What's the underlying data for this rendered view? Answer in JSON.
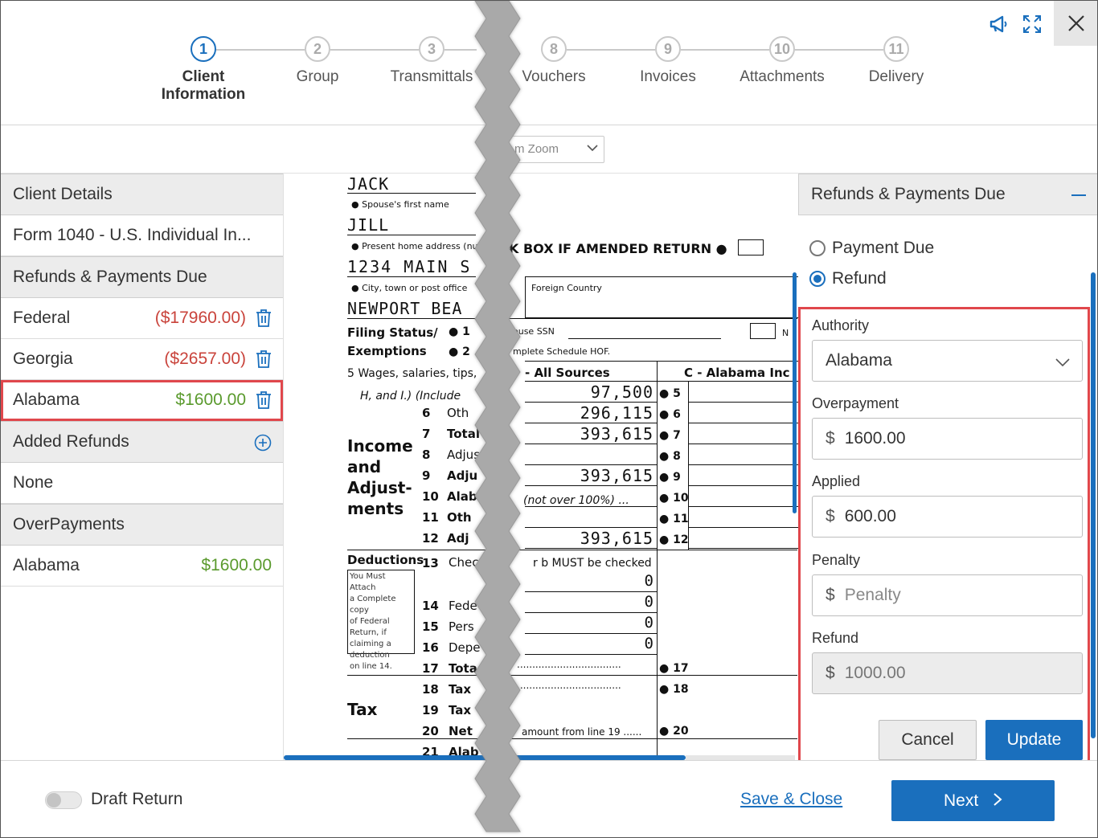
{
  "stepper": {
    "steps": [
      {
        "num": "1",
        "label": "Client\nInformation",
        "active": true
      },
      {
        "num": "2",
        "label": "Group"
      },
      {
        "num": "3",
        "label": "Transmittals"
      },
      {
        "num": "8",
        "label": "Vouchers"
      },
      {
        "num": "9",
        "label": "Invoices"
      },
      {
        "num": "10",
        "label": "Attachments"
      },
      {
        "num": "11",
        "label": "Delivery"
      }
    ]
  },
  "header_icons": [
    "megaphone-icon",
    "expand-icon",
    "close-icon"
  ],
  "toolbar": {
    "zoom_value": "m Zoom"
  },
  "left_panel": {
    "client_details_header": "Client Details",
    "form_name": "Form 1040 - U.S. Individual In...",
    "refunds_header": "Refunds & Payments Due",
    "refunds": [
      {
        "name": "Federal",
        "amount": "($17960.00)",
        "status": "red"
      },
      {
        "name": "Georgia",
        "amount": "($2657.00)",
        "status": "red"
      },
      {
        "name": "Alabama",
        "amount": "$1600.00",
        "status": "green"
      }
    ],
    "added_refunds_header": "Added Refunds",
    "added_refunds_value": "None",
    "overpayments_header": "OverPayments",
    "overpayments": [
      {
        "name": "Alabama",
        "amount": "$1600.00"
      }
    ]
  },
  "document": {
    "first_name": "JACK",
    "spouse_first_name_label": "Spouse's first name",
    "spouse_first_name": "JILL",
    "home_address_label": "Present home address (numb",
    "home_address": "1234 MAIN S",
    "city_label": "City, town or post office",
    "city": "NEWPORT BEA",
    "amended_label": "K BOX IF AMENDED RETURN",
    "foreign_country_label": "Foreign Country",
    "filing_status_label": "Filing Status/",
    "exemptions_label": "Exemptions",
    "spouse_ssn_label": "ouse SSN",
    "schedule_hof_label": "mplete Schedule HOF.",
    "nr_label": "N",
    "line5_label": "5  Wages, salaries, tips,",
    "line5_sub": "H, and I.) (Include",
    "col_all_sources": "- All Sources",
    "col_alabama": "C - Alabama Inc",
    "income_header": "Income\nand\nAdjust-\nments",
    "lines": [
      {
        "num": "5",
        "text": "",
        "value": "97,500"
      },
      {
        "num": "6",
        "text": "Oth",
        "value": "296,115"
      },
      {
        "num": "7",
        "text": "Total",
        "value": "393,615"
      },
      {
        "num": "8",
        "text": "Adjus",
        "value": ""
      },
      {
        "num": "9",
        "text": "Adju",
        "value": "393,615"
      },
      {
        "num": "10",
        "text": "Alab",
        "value": ""
      },
      {
        "num": "11",
        "text": "Oth",
        "value": ""
      },
      {
        "num": "12",
        "text": "Adj",
        "value": "393,615"
      }
    ],
    "not_over_100": "(not over 100%)   ...",
    "deductions_label": "Deductions",
    "attach_note": "You Must Attach\na Complete copy\nof Federal\nReturn, if\nclaiming a\ndeduction\non line 14.",
    "line13_text": "Chec",
    "line13_rest": "r b MUST be checked",
    "ded_values": [
      "0",
      "0",
      "0",
      "0"
    ],
    "ded_lines": [
      {
        "num": "14",
        "text": "Fede"
      },
      {
        "num": "15",
        "text": "Pers"
      },
      {
        "num": "16",
        "text": "Depe"
      },
      {
        "num": "17",
        "text": "Tota"
      }
    ],
    "tax_label": "Tax",
    "tax_lines": [
      {
        "num": "18",
        "text": "Tax"
      },
      {
        "num": "19",
        "text": "Tax"
      },
      {
        "num": "20",
        "text": "Net"
      },
      {
        "num": "21",
        "text": "Alab"
      }
    ],
    "line20_rest": "amount from line 19   ......",
    "right_nums": [
      "5",
      "6",
      "7",
      "8",
      "9",
      "10",
      "11",
      "12",
      "17",
      "18",
      "20"
    ],
    "line1": "1",
    "line2": "2"
  },
  "right_panel": {
    "header": "Refunds & Payments Due",
    "radio_payment_due": "Payment Due",
    "radio_refund": "Refund",
    "selected": "Refund",
    "authority_label": "Authority",
    "authority_value": "Alabama",
    "overpayment_label": "Overpayment",
    "overpayment_value": "1600.00",
    "applied_label": "Applied",
    "applied_value": "600.00",
    "penalty_label": "Penalty",
    "penalty_placeholder": "Penalty",
    "refund_label": "Refund",
    "refund_value": "1000.00",
    "currency_symbol": "$",
    "cancel_label": "Cancel",
    "update_label": "Update"
  },
  "footer": {
    "draft_label": "Draft Return",
    "draft_on": false,
    "save_close_label": "Save & Close",
    "next_label": "Next"
  },
  "colors": {
    "accent": "#1a6fbd",
    "negative": "#c9433b",
    "positive": "#5a9a2d",
    "highlight": "#e0474c"
  }
}
